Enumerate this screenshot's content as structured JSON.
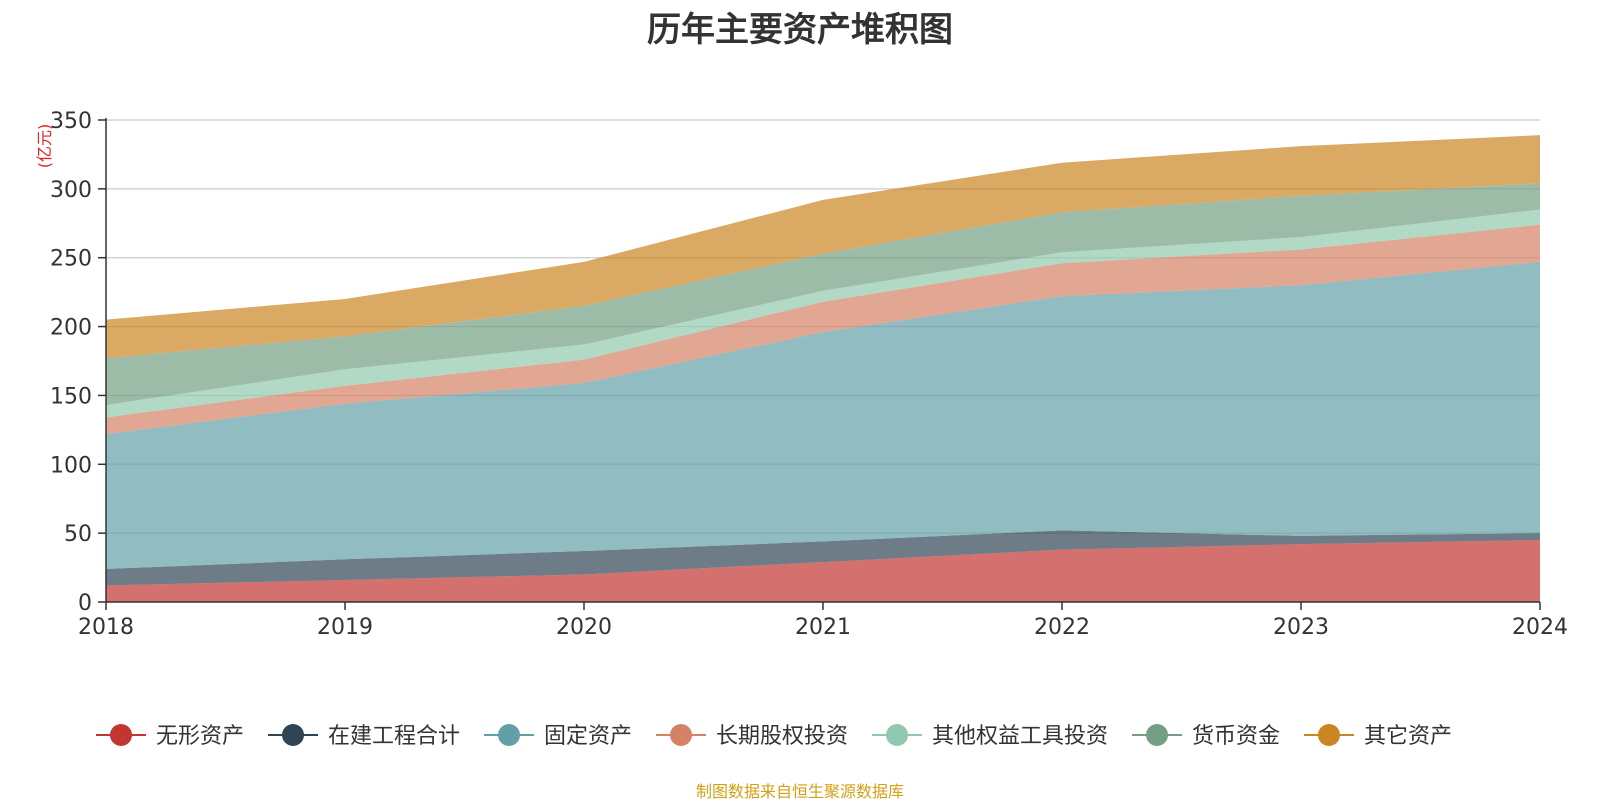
{
  "chart_data": {
    "type": "area",
    "stacked": true,
    "title": "历年主要资产堆积图",
    "ylabel": "(亿元)",
    "xlabel": "",
    "ylim": [
      0,
      350
    ],
    "yticks": [
      0,
      50,
      100,
      150,
      200,
      250,
      300,
      350
    ],
    "categories": [
      "2018",
      "2019",
      "2020",
      "2021",
      "2022",
      "2023",
      "2024"
    ],
    "grid": true,
    "legend_position": "bottom",
    "series": [
      {
        "name": "无形资产",
        "color": "#c23531",
        "values": [
          12,
          16,
          20,
          29,
          38,
          42,
          45
        ]
      },
      {
        "name": "在建工程合计",
        "color": "#2f4554",
        "values": [
          12,
          15,
          17,
          15,
          14,
          6,
          5
        ]
      },
      {
        "name": "固定资产",
        "color": "#61a0a8",
        "values": [
          98,
          113,
          122,
          152,
          170,
          182,
          197
        ]
      },
      {
        "name": "长期股权投资",
        "color": "#d48265",
        "values": [
          12,
          13,
          17,
          22,
          24,
          26,
          27
        ]
      },
      {
        "name": "其他权益工具投资",
        "color": "#91c7ae",
        "values": [
          9,
          12,
          11,
          8,
          8,
          9,
          11
        ]
      },
      {
        "name": "货币资金",
        "color": "#749f83",
        "values": [
          34,
          24,
          28,
          27,
          29,
          30,
          19
        ]
      },
      {
        "name": "其它资产",
        "color": "#ca8622",
        "values": [
          28,
          27,
          32,
          39,
          36,
          36,
          35
        ]
      }
    ]
  },
  "source_note": "制图数据来自恒生聚源数据库"
}
